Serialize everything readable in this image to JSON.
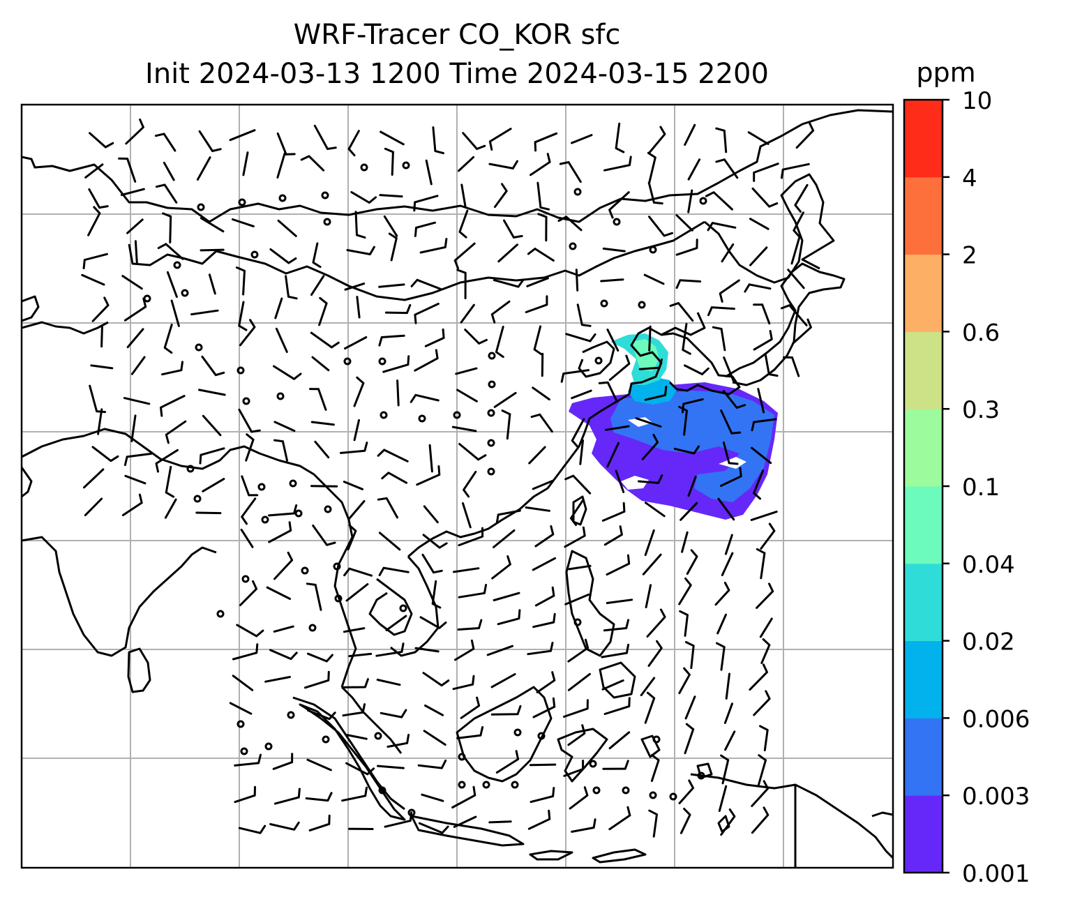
{
  "title_line1": "WRF-Tracer CO_KOR sfc",
  "title_line2": "Init 2024-03-13 1200 Time 2024-03-15 2200",
  "colorbar": {
    "unit": "ppm",
    "levels": [
      "0.001",
      "0.003",
      "0.006",
      "0.02",
      "0.04",
      "0.1",
      "0.3",
      "0.6",
      "2",
      "4",
      "10"
    ],
    "colors": [
      "#6528f8",
      "#3374f5",
      "#01b2ec",
      "#2fdcd8",
      "#6cfbbd",
      "#9cfb9d",
      "#cde186",
      "#fdb065",
      "#fd703c",
      "#fe2c18"
    ]
  },
  "map": {
    "field": "CO_KOR",
    "level": "sfc",
    "plume_colors": [
      "#6528f8",
      "#3374f5",
      "#01b2ec",
      "#2fdcd8",
      "#6cfbbd"
    ],
    "coastline_color": "#000000",
    "grid_color": "#b0b0b0",
    "wind_barbs": "on",
    "gridlines": "on"
  }
}
